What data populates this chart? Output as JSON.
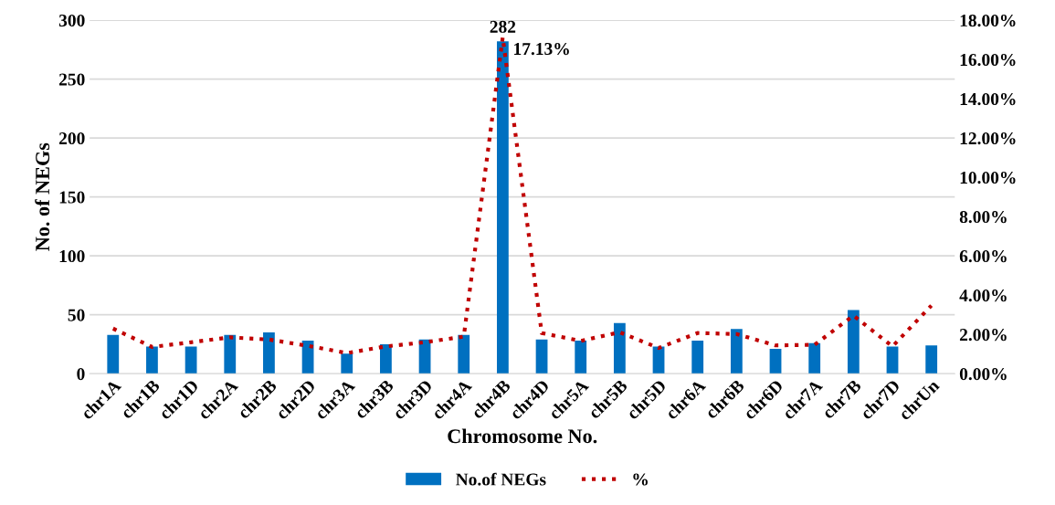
{
  "chart_data": {
    "type": "bar",
    "xlabel": "Chromosome No.",
    "ylabel": "No. of NEGs",
    "categories": [
      "chr1A",
      "chr1B",
      "chr1D",
      "chr2A",
      "chr2B",
      "chr2D",
      "chr3A",
      "chr3B",
      "chr3D",
      "chr4A",
      "chr4B",
      "chr4D",
      "chr5A",
      "chr5B",
      "chr5D",
      "chr6A",
      "chr6B",
      "chr6D",
      "chr7A",
      "chr7B",
      "chr7D",
      "chrUn"
    ],
    "series": [
      {
        "name": "No.of NEGs",
        "color": "#0070c0",
        "values": [
          33,
          23,
          23,
          33,
          35,
          28,
          17,
          25,
          29,
          33,
          282,
          29,
          28,
          43,
          23,
          28,
          38,
          21,
          26,
          54,
          23,
          24
        ],
        "value_labels": [
          null,
          null,
          null,
          null,
          null,
          null,
          null,
          null,
          null,
          null,
          "282",
          null,
          null,
          null,
          null,
          null,
          null,
          null,
          null,
          null,
          null,
          null
        ]
      },
      {
        "name": "%",
        "type": "line",
        "axis": "y2",
        "color": "#c00000",
        "line_style": "dotted",
        "values": [
          2.3,
          1.36,
          1.6,
          1.85,
          1.74,
          1.42,
          1.05,
          1.39,
          1.6,
          1.89,
          17.13,
          2.07,
          1.67,
          2.11,
          1.31,
          2.07,
          2.02,
          1.44,
          1.47,
          2.96,
          1.39,
          3.47
        ],
        "value_labels": [
          null,
          null,
          null,
          null,
          null,
          null,
          null,
          null,
          null,
          null,
          "17.13%",
          null,
          null,
          null,
          null,
          null,
          null,
          null,
          null,
          null,
          null,
          null
        ]
      }
    ],
    "ylim": [
      0,
      300
    ],
    "yticks": [
      0,
      50,
      100,
      150,
      200,
      250,
      300
    ],
    "y2lim": [
      0,
      18
    ],
    "y2ticks": [
      {
        "value": 0,
        "label": "0.00%"
      },
      {
        "value": 2,
        "label": "2.00%"
      },
      {
        "value": 4,
        "label": "4.00%"
      },
      {
        "value": 6,
        "label": "6.00%"
      },
      {
        "value": 8,
        "label": "8.00%"
      },
      {
        "value": 10,
        "label": "10.00%"
      },
      {
        "value": 12,
        "label": "12.00%"
      },
      {
        "value": 14,
        "label": "14.00%"
      },
      {
        "value": 16,
        "label": "16.00%"
      },
      {
        "value": 18,
        "label": "18.00%"
      }
    ],
    "grid": "y",
    "legend": "bottom"
  }
}
